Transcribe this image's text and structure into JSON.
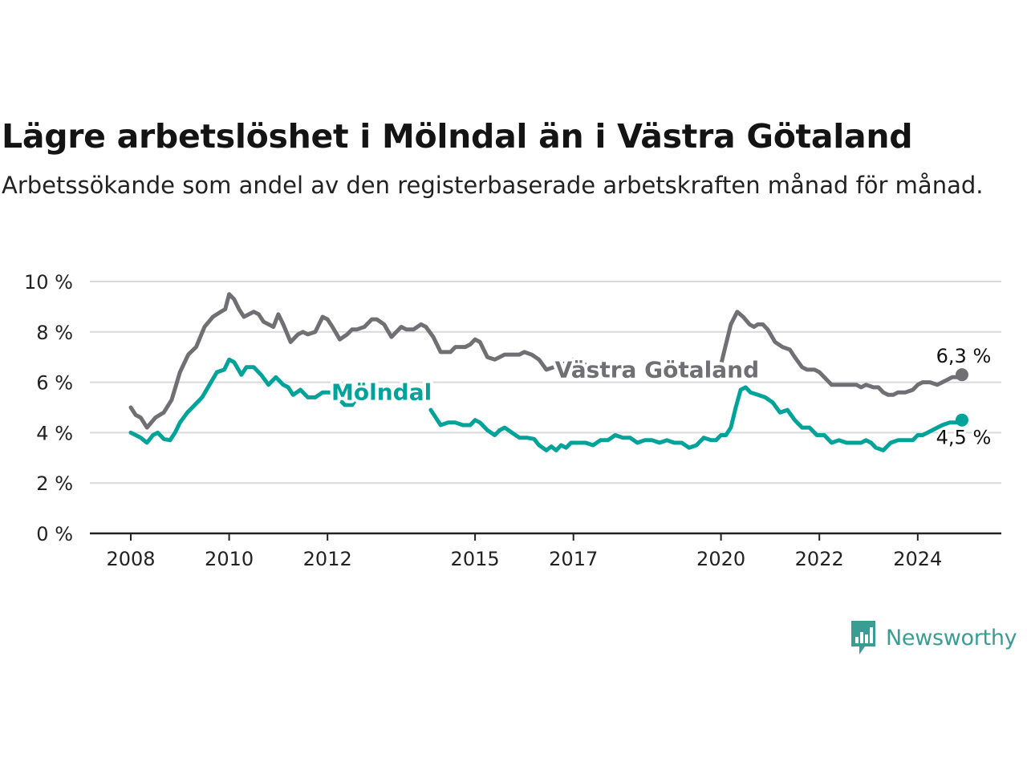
{
  "header": {
    "title": "Lägre arbetslöshet i Mölndal än i Västra Götaland",
    "subtitle": "Arbetssökande som andel av den registerbaserade arbetskraften månad för månad."
  },
  "brand": {
    "name": "Newsworthy",
    "icon": "chat-bar-chart-icon",
    "color": "#3a9d94"
  },
  "colors": {
    "grid": "#d9d9d9",
    "axis": "#222222",
    "vg": "#707074",
    "moln": "#00a39a"
  },
  "chart_data": {
    "type": "line",
    "title": "Lägre arbetslöshet i Mölndal än i Västra Götaland",
    "ylim": [
      0,
      10
    ],
    "y_ticks": [
      0,
      2,
      4,
      6,
      8,
      10
    ],
    "y_tick_labels": [
      "0 %",
      "2 %",
      "4 %",
      "6 %",
      "8 %",
      "10 %"
    ],
    "x_ticks": [
      2008,
      2010,
      2012,
      2015,
      2017,
      2020,
      2022,
      2024
    ],
    "x_tick_labels": [
      "2008",
      "2010",
      "2012",
      "2015",
      "2017",
      "2020",
      "2022",
      "2024"
    ],
    "grid": true,
    "series": [
      {
        "name": "Västra Götaland",
        "color": "#707074",
        "end_label": "6,3 %",
        "points": [
          [
            2008.0,
            5.0
          ],
          [
            2008.1,
            4.7
          ],
          [
            2008.2,
            4.6
          ],
          [
            2008.33,
            4.2
          ],
          [
            2008.5,
            4.6
          ],
          [
            2008.67,
            4.8
          ],
          [
            2008.83,
            5.3
          ],
          [
            2009.0,
            6.4
          ],
          [
            2009.17,
            7.1
          ],
          [
            2009.33,
            7.4
          ],
          [
            2009.5,
            8.2
          ],
          [
            2009.67,
            8.6
          ],
          [
            2009.83,
            8.8
          ],
          [
            2009.92,
            8.9
          ],
          [
            2010.0,
            9.5
          ],
          [
            2010.1,
            9.3
          ],
          [
            2010.2,
            8.9
          ],
          [
            2010.3,
            8.6
          ],
          [
            2010.5,
            8.8
          ],
          [
            2010.6,
            8.7
          ],
          [
            2010.7,
            8.4
          ],
          [
            2010.9,
            8.2
          ],
          [
            2011.0,
            8.7
          ],
          [
            2011.1,
            8.3
          ],
          [
            2011.25,
            7.6
          ],
          [
            2011.4,
            7.9
          ],
          [
            2011.5,
            8.0
          ],
          [
            2011.6,
            7.9
          ],
          [
            2011.75,
            8.0
          ],
          [
            2011.9,
            8.6
          ],
          [
            2012.0,
            8.5
          ],
          [
            2012.1,
            8.2
          ],
          [
            2012.25,
            7.7
          ],
          [
            2012.4,
            7.9
          ],
          [
            2012.5,
            8.1
          ],
          [
            2012.6,
            8.1
          ],
          [
            2012.75,
            8.2
          ],
          [
            2012.9,
            8.5
          ],
          [
            2013.0,
            8.5
          ],
          [
            2013.15,
            8.3
          ],
          [
            2013.3,
            7.8
          ],
          [
            2013.5,
            8.2
          ],
          [
            2013.6,
            8.1
          ],
          [
            2013.75,
            8.1
          ],
          [
            2013.9,
            8.3
          ],
          [
            2014.0,
            8.2
          ],
          [
            2014.15,
            7.8
          ],
          [
            2014.3,
            7.2
          ],
          [
            2014.5,
            7.2
          ],
          [
            2014.6,
            7.4
          ],
          [
            2014.8,
            7.4
          ],
          [
            2014.9,
            7.5
          ],
          [
            2015.0,
            7.7
          ],
          [
            2015.1,
            7.6
          ],
          [
            2015.25,
            7.0
          ],
          [
            2015.4,
            6.9
          ],
          [
            2015.6,
            7.1
          ],
          [
            2015.75,
            7.1
          ],
          [
            2015.9,
            7.1
          ],
          [
            2016.0,
            7.2
          ],
          [
            2016.15,
            7.1
          ],
          [
            2016.3,
            6.9
          ],
          [
            2016.45,
            6.5
          ],
          [
            2016.6,
            6.6
          ],
          [
            2016.75,
            6.7
          ],
          [
            2016.9,
            6.8
          ],
          [
            2017.0,
            6.9
          ],
          [
            2017.15,
            6.85
          ],
          [
            2017.3,
            6.6
          ],
          [
            2017.5,
            6.45
          ]
        ]
      },
      {
        "name": "Västra Götaland (2020–2024)",
        "color": "#707074",
        "points": [
          [
            2019.9,
            6.45
          ],
          [
            2020.0,
            6.7
          ],
          [
            2020.1,
            7.5
          ],
          [
            2020.2,
            8.3
          ],
          [
            2020.33,
            8.8
          ],
          [
            2020.45,
            8.6
          ],
          [
            2020.58,
            8.3
          ],
          [
            2020.67,
            8.2
          ],
          [
            2020.75,
            8.3
          ],
          [
            2020.85,
            8.3
          ],
          [
            2020.95,
            8.1
          ],
          [
            2021.1,
            7.6
          ],
          [
            2021.25,
            7.4
          ],
          [
            2021.4,
            7.3
          ],
          [
            2021.5,
            7.0
          ],
          [
            2021.65,
            6.6
          ],
          [
            2021.75,
            6.5
          ],
          [
            2021.9,
            6.5
          ],
          [
            2022.0,
            6.4
          ],
          [
            2022.1,
            6.2
          ],
          [
            2022.25,
            5.9
          ],
          [
            2022.4,
            5.9
          ],
          [
            2022.5,
            5.9
          ],
          [
            2022.75,
            5.9
          ],
          [
            2022.85,
            5.8
          ],
          [
            2022.95,
            5.9
          ],
          [
            2023.1,
            5.8
          ],
          [
            2023.2,
            5.8
          ],
          [
            2023.3,
            5.6
          ],
          [
            2023.4,
            5.5
          ],
          [
            2023.5,
            5.5
          ],
          [
            2023.6,
            5.6
          ],
          [
            2023.75,
            5.6
          ],
          [
            2023.9,
            5.7
          ],
          [
            2024.0,
            5.9
          ],
          [
            2024.1,
            6.0
          ],
          [
            2024.25,
            6.0
          ],
          [
            2024.4,
            5.9
          ],
          [
            2024.5,
            6.0
          ],
          [
            2024.6,
            6.1
          ],
          [
            2024.7,
            6.2
          ],
          [
            2024.8,
            6.2
          ],
          [
            2024.9,
            6.3
          ]
        ]
      },
      {
        "name": "Mölndal",
        "color": "#00a39a",
        "end_label": "4,5 %",
        "points": [
          [
            2008.0,
            4.0
          ],
          [
            2008.1,
            3.9
          ],
          [
            2008.2,
            3.8
          ],
          [
            2008.33,
            3.6
          ],
          [
            2008.45,
            3.9
          ],
          [
            2008.55,
            4.0
          ],
          [
            2008.67,
            3.75
          ],
          [
            2008.8,
            3.7
          ],
          [
            2008.9,
            4.0
          ],
          [
            2009.0,
            4.4
          ],
          [
            2009.15,
            4.8
          ],
          [
            2009.3,
            5.1
          ],
          [
            2009.45,
            5.4
          ],
          [
            2009.6,
            5.9
          ],
          [
            2009.75,
            6.4
          ],
          [
            2009.9,
            6.5
          ],
          [
            2010.0,
            6.9
          ],
          [
            2010.1,
            6.8
          ],
          [
            2010.25,
            6.3
          ],
          [
            2010.35,
            6.6
          ],
          [
            2010.5,
            6.6
          ],
          [
            2010.65,
            6.3
          ],
          [
            2010.8,
            5.9
          ],
          [
            2010.95,
            6.2
          ],
          [
            2011.1,
            5.9
          ],
          [
            2011.2,
            5.8
          ],
          [
            2011.3,
            5.5
          ],
          [
            2011.45,
            5.7
          ],
          [
            2011.6,
            5.4
          ],
          [
            2011.75,
            5.4
          ],
          [
            2011.9,
            5.6
          ],
          [
            2012.05,
            5.6
          ],
          [
            2012.2,
            5.4
          ],
          [
            2012.35,
            5.1
          ],
          [
            2012.5,
            5.1
          ],
          [
            2012.6,
            5.4
          ]
        ]
      },
      {
        "name": "Mölndal (2014–2024)",
        "color": "#00a39a",
        "points": [
          [
            2014.1,
            4.9
          ],
          [
            2014.2,
            4.6
          ],
          [
            2014.3,
            4.3
          ],
          [
            2014.45,
            4.4
          ],
          [
            2014.6,
            4.4
          ],
          [
            2014.75,
            4.3
          ],
          [
            2014.9,
            4.3
          ],
          [
            2015.0,
            4.5
          ],
          [
            2015.1,
            4.4
          ],
          [
            2015.25,
            4.1
          ],
          [
            2015.4,
            3.9
          ],
          [
            2015.5,
            4.1
          ],
          [
            2015.6,
            4.2
          ],
          [
            2015.75,
            4.0
          ],
          [
            2015.9,
            3.8
          ],
          [
            2016.05,
            3.8
          ],
          [
            2016.2,
            3.75
          ],
          [
            2016.3,
            3.5
          ],
          [
            2016.45,
            3.3
          ],
          [
            2016.55,
            3.45
          ],
          [
            2016.65,
            3.3
          ],
          [
            2016.75,
            3.5
          ],
          [
            2016.85,
            3.4
          ],
          [
            2016.95,
            3.6
          ],
          [
            2017.1,
            3.6
          ],
          [
            2017.25,
            3.6
          ],
          [
            2017.4,
            3.5
          ],
          [
            2017.55,
            3.7
          ],
          [
            2017.7,
            3.7
          ],
          [
            2017.85,
            3.9
          ],
          [
            2018.0,
            3.8
          ],
          [
            2018.15,
            3.8
          ],
          [
            2018.3,
            3.6
          ],
          [
            2018.45,
            3.7
          ],
          [
            2018.6,
            3.7
          ],
          [
            2018.75,
            3.6
          ],
          [
            2018.9,
            3.7
          ],
          [
            2019.05,
            3.6
          ],
          [
            2019.2,
            3.6
          ],
          [
            2019.35,
            3.4
          ],
          [
            2019.5,
            3.5
          ],
          [
            2019.65,
            3.8
          ],
          [
            2019.8,
            3.7
          ],
          [
            2019.9,
            3.7
          ],
          [
            2020.0,
            3.9
          ],
          [
            2020.1,
            3.9
          ],
          [
            2020.2,
            4.2
          ],
          [
            2020.3,
            5.0
          ],
          [
            2020.4,
            5.7
          ],
          [
            2020.5,
            5.8
          ],
          [
            2020.6,
            5.6
          ],
          [
            2020.75,
            5.5
          ],
          [
            2020.9,
            5.4
          ],
          [
            2021.05,
            5.2
          ],
          [
            2021.2,
            4.8
          ],
          [
            2021.35,
            4.9
          ],
          [
            2021.5,
            4.5
          ],
          [
            2021.65,
            4.2
          ],
          [
            2021.8,
            4.2
          ],
          [
            2021.95,
            3.9
          ],
          [
            2022.1,
            3.9
          ],
          [
            2022.25,
            3.6
          ],
          [
            2022.4,
            3.7
          ],
          [
            2022.55,
            3.6
          ],
          [
            2022.7,
            3.6
          ],
          [
            2022.85,
            3.6
          ],
          [
            2022.95,
            3.7
          ],
          [
            2023.05,
            3.6
          ],
          [
            2023.15,
            3.4
          ],
          [
            2023.3,
            3.3
          ],
          [
            2023.45,
            3.6
          ],
          [
            2023.6,
            3.7
          ],
          [
            2023.75,
            3.7
          ],
          [
            2023.9,
            3.7
          ],
          [
            2024.0,
            3.9
          ],
          [
            2024.1,
            3.9
          ],
          [
            2024.2,
            4.0
          ],
          [
            2024.4,
            4.2
          ],
          [
            2024.5,
            4.3
          ],
          [
            2024.65,
            4.4
          ],
          [
            2024.8,
            4.4
          ],
          [
            2024.9,
            4.5
          ]
        ]
      }
    ],
    "series_labels": [
      {
        "name": "Mölndal",
        "color": "#00a39a",
        "x": 2013.1,
        "y": 5.3
      },
      {
        "name": "Västra Götaland",
        "color": "#707074",
        "x": 2018.7,
        "y": 6.2
      }
    ],
    "end_points": [
      {
        "label": "6,3 %",
        "x": 2024.9,
        "y": 6.3,
        "color": "#707074"
      },
      {
        "label": "4,5 %",
        "x": 2024.9,
        "y": 4.5,
        "color": "#00a39a"
      }
    ]
  }
}
